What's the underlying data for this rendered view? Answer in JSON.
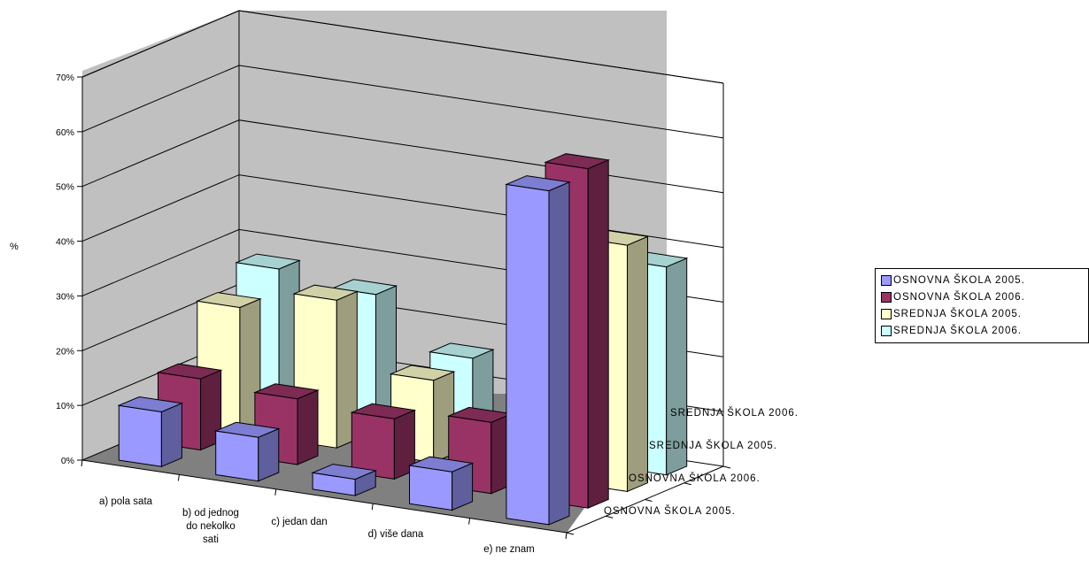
{
  "chart_data": {
    "type": "bar",
    "categories": [
      "a) pola sata",
      "b) od jednog do nekolko sati",
      "c) jedan dan",
      "d) više dana",
      "e) ne znam"
    ],
    "series": [
      {
        "name": "OSNOVNA ŠKOLA 2005.",
        "values": [
          10,
          8,
          3,
          7,
          61
        ]
      },
      {
        "name": "OSNOVNA ŠKOLA 2006.",
        "values": [
          13,
          12,
          11,
          13,
          62
        ]
      },
      {
        "name": "SREDNJA ŠKOLA 2005.",
        "values": [
          23,
          27,
          15,
          7,
          45
        ]
      },
      {
        "name": "SREDNJA ŠKOLA 2006.",
        "values": [
          27,
          25,
          16,
          6,
          38
        ]
      }
    ],
    "depth_labels": [
      "SREDNJA ŠKOLA 2006.",
      "SREDNJA ŠKOLA 2005.",
      "OSNOVNA ŠKOLA 2006.",
      "OSNOVNA ŠKOLA 2005."
    ],
    "ylabel": "%",
    "ylim": [
      0,
      70
    ],
    "yticks": [
      "0%",
      "10%",
      "20%",
      "30%",
      "40%",
      "50%",
      "60%",
      "70%"
    ],
    "grid": true,
    "legend_position": "right",
    "colors": [
      "#9999ff",
      "#993366",
      "#ffffcc",
      "#ccffff"
    ],
    "wall_color": "#c0c0c0",
    "floor_color": "#808080"
  }
}
